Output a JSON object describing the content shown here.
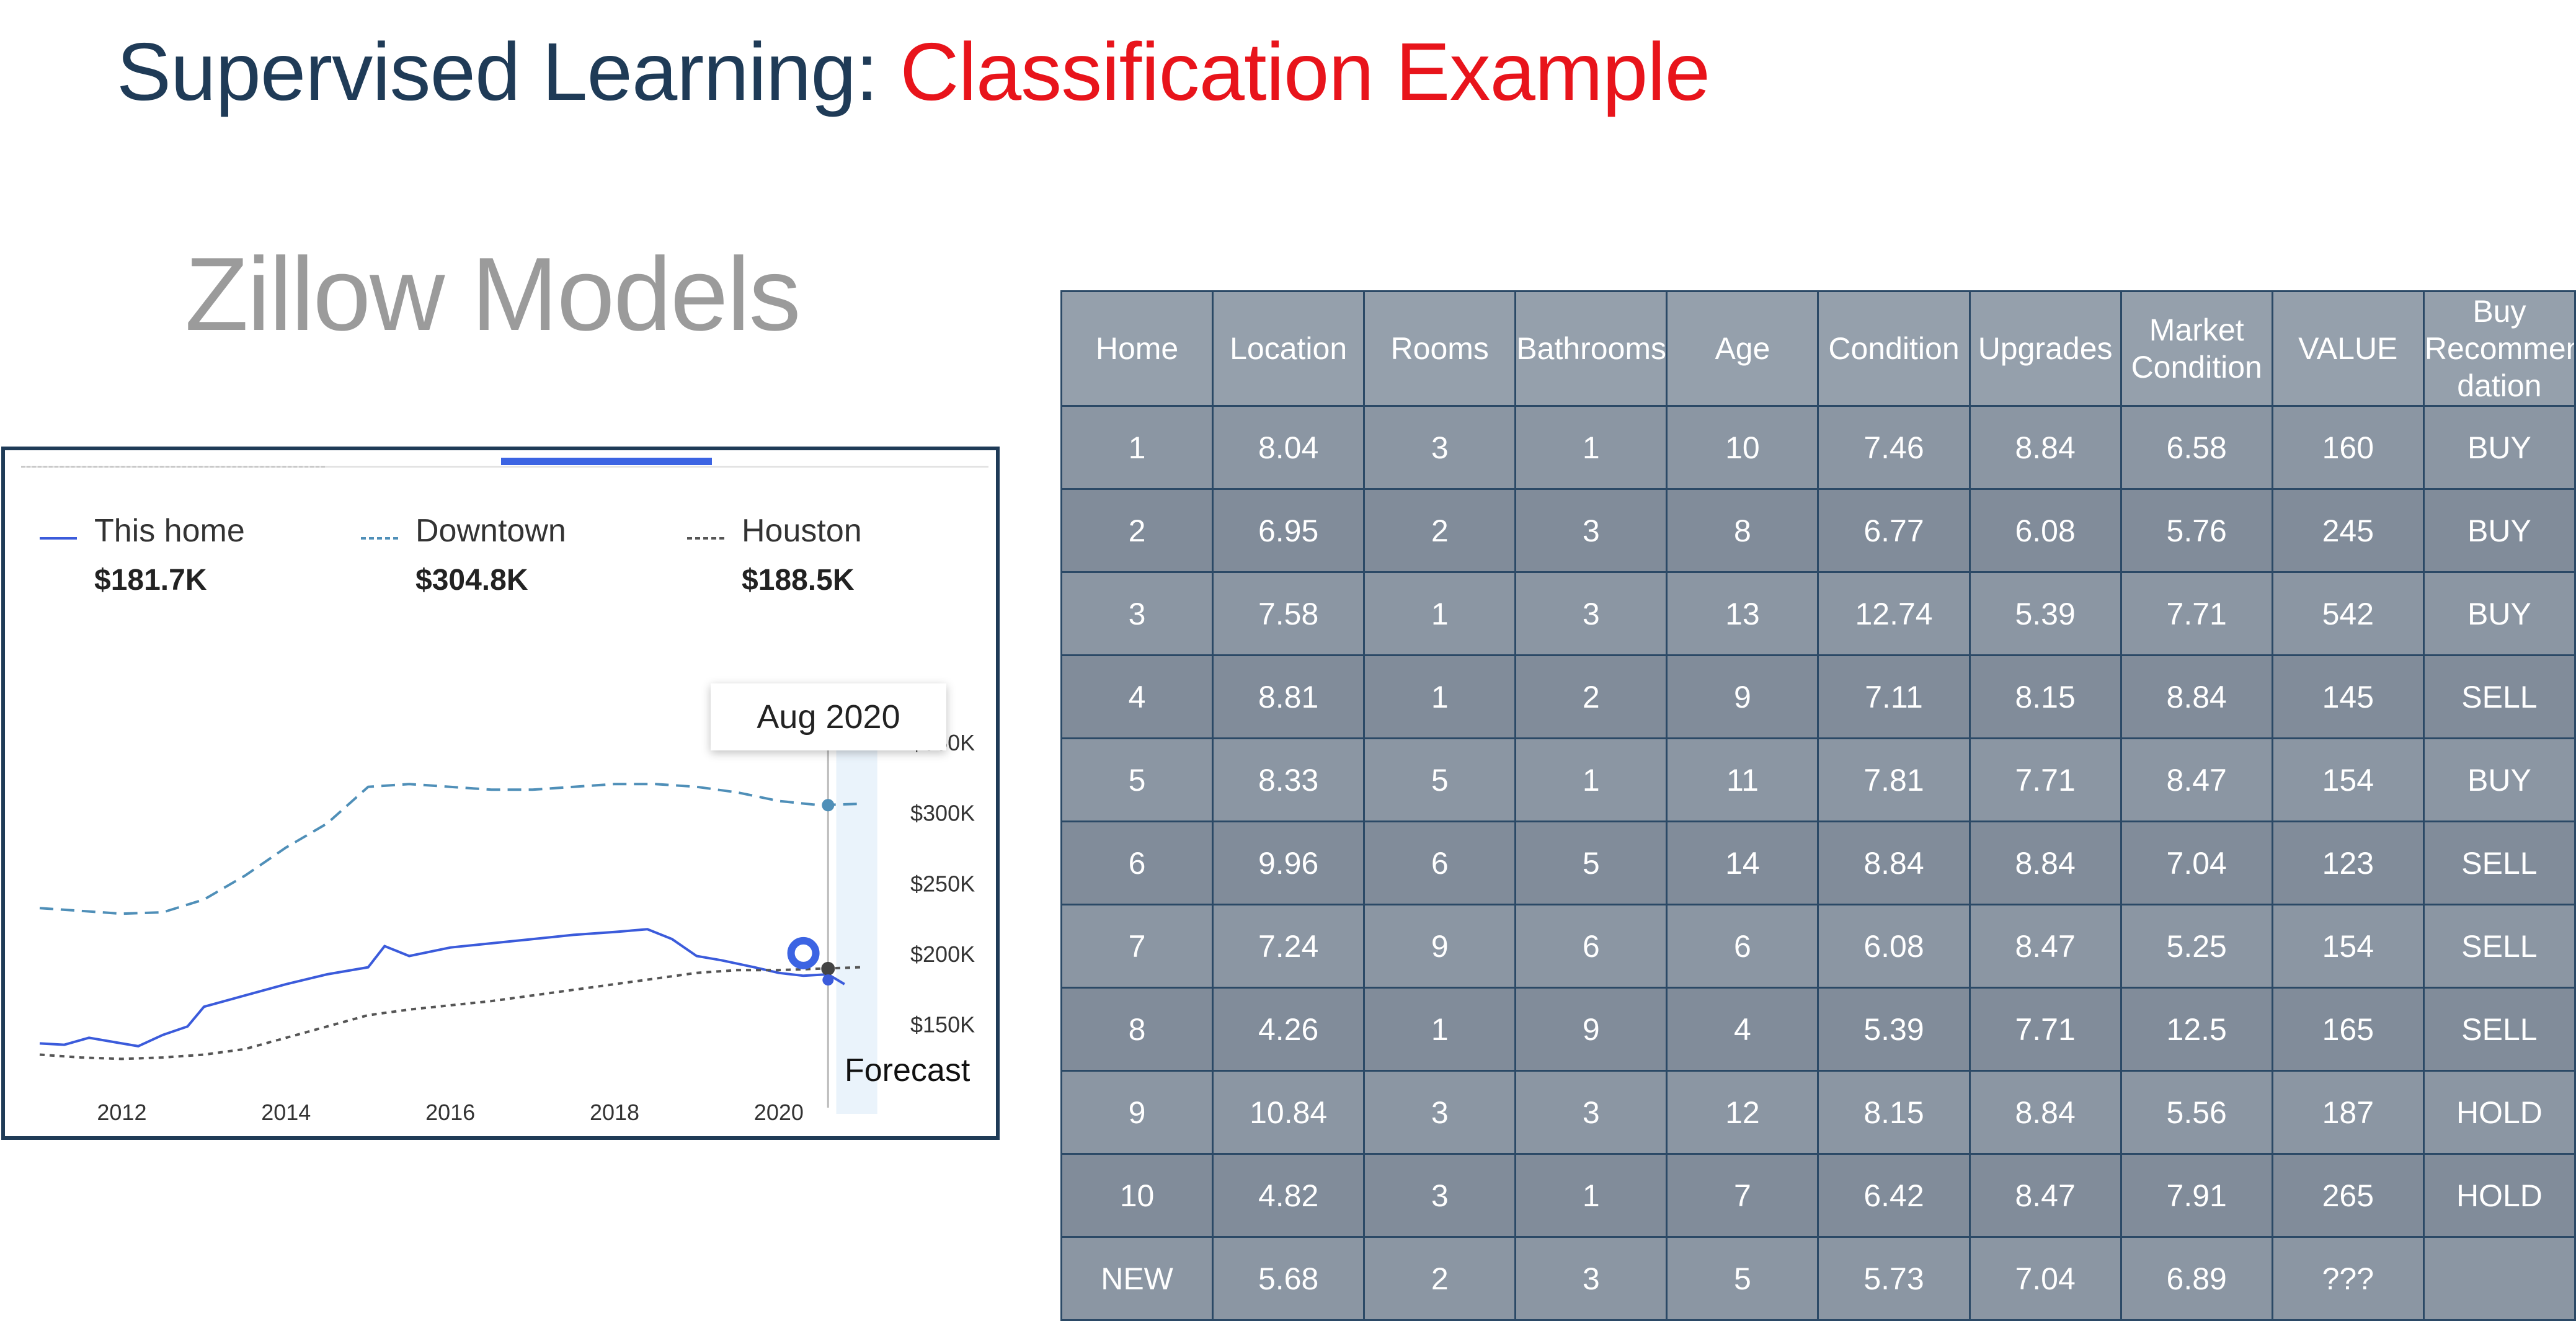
{
  "slide": {
    "title_main": "Supervised Learning: ",
    "title_accent": "Classification Example",
    "subtitle": "Zillow Models",
    "colors": {
      "title": "#1f3b57",
      "accent": "#e8141b",
      "table_cell": "#8b96a3",
      "table_border": "#2b4966"
    }
  },
  "legend": [
    {
      "name": "This home",
      "value": "$181.7K"
    },
    {
      "name": "Downtown",
      "value": "$304.8K"
    },
    {
      "name": "Houston",
      "value": "$188.5K"
    }
  ],
  "tooltip": "Aug 2020",
  "forecast_label": "Forecast",
  "chart_data": {
    "type": "line",
    "x_ticks": [
      "2012",
      "2014",
      "2016",
      "2018",
      "2020"
    ],
    "y_ticks": [
      "$150K",
      "$200K",
      "$250K",
      "$300K",
      "$350K"
    ],
    "ylim": [
      130,
      350
    ],
    "xlim": [
      2011.0,
      2021.3
    ],
    "series": [
      {
        "name": "This home",
        "color": "#3b5bdb",
        "style": "solid",
        "x": [
          2011.0,
          2011.3,
          2011.6,
          2011.9,
          2012.2,
          2012.5,
          2012.8,
          2013.0,
          2013.5,
          2014.0,
          2014.5,
          2015.0,
          2015.2,
          2015.5,
          2016.0,
          2016.5,
          2017.0,
          2017.5,
          2018.0,
          2018.4,
          2018.7,
          2019.0,
          2019.3,
          2019.7,
          2020.0,
          2020.3,
          2020.6,
          2020.8
        ],
        "y": [
          136,
          135,
          140,
          137,
          134,
          142,
          148,
          162,
          170,
          178,
          185,
          190,
          205,
          198,
          204,
          207,
          210,
          213,
          215,
          217,
          210,
          198,
          195,
          190,
          186,
          184,
          185,
          178
        ]
      },
      {
        "name": "Downtown",
        "color": "#4f8fb8",
        "style": "dashed",
        "x": [
          2011.0,
          2011.5,
          2012.0,
          2012.5,
          2013.0,
          2013.5,
          2014.0,
          2014.5,
          2015.0,
          2015.5,
          2016.0,
          2016.5,
          2017.0,
          2017.5,
          2018.0,
          2018.5,
          2019.0,
          2019.5,
          2020.0,
          2020.5,
          2021.0
        ],
        "y": [
          232,
          230,
          228,
          229,
          238,
          255,
          275,
          292,
          318,
          320,
          318,
          316,
          316,
          318,
          320,
          320,
          318,
          314,
          308,
          305,
          306
        ]
      },
      {
        "name": "Houston",
        "color": "#555555",
        "style": "dotted",
        "x": [
          2011.0,
          2011.5,
          2012.0,
          2012.5,
          2013.0,
          2013.5,
          2014.0,
          2014.5,
          2015.0,
          2015.5,
          2016.0,
          2016.5,
          2017.0,
          2017.5,
          2018.0,
          2018.5,
          2019.0,
          2019.5,
          2020.0,
          2020.5,
          2021.0
        ],
        "y": [
          128,
          126,
          125,
          126,
          128,
          132,
          140,
          148,
          156,
          160,
          163,
          166,
          170,
          174,
          178,
          182,
          186,
          188,
          188,
          189,
          190
        ]
      }
    ]
  },
  "table": {
    "headers": [
      "Home",
      "Location",
      "Rooms",
      "Bathrooms",
      "Age",
      "Condition",
      "Upgrades",
      "Market Condition",
      "VALUE",
      "Buy Recommen dation"
    ],
    "rows": [
      [
        "1",
        "8.04",
        "3",
        "1",
        "10",
        "7.46",
        "8.84",
        "6.58",
        "160",
        "BUY"
      ],
      [
        "2",
        "6.95",
        "2",
        "3",
        "8",
        "6.77",
        "6.08",
        "5.76",
        "245",
        "BUY"
      ],
      [
        "3",
        "7.58",
        "1",
        "3",
        "13",
        "12.74",
        "5.39",
        "7.71",
        "542",
        "BUY"
      ],
      [
        "4",
        "8.81",
        "1",
        "2",
        "9",
        "7.11",
        "8.15",
        "8.84",
        "145",
        "SELL"
      ],
      [
        "5",
        "8.33",
        "5",
        "1",
        "11",
        "7.81",
        "7.71",
        "8.47",
        "154",
        "BUY"
      ],
      [
        "6",
        "9.96",
        "6",
        "5",
        "14",
        "8.84",
        "8.84",
        "7.04",
        "123",
        "SELL"
      ],
      [
        "7",
        "7.24",
        "9",
        "6",
        "6",
        "6.08",
        "8.47",
        "5.25",
        "154",
        "SELL"
      ],
      [
        "8",
        "4.26",
        "1",
        "9",
        "4",
        "5.39",
        "7.71",
        "12.5",
        "165",
        "SELL"
      ],
      [
        "9",
        "10.84",
        "3",
        "3",
        "12",
        "8.15",
        "8.84",
        "5.56",
        "187",
        "HOLD"
      ],
      [
        "10",
        "4.82",
        "3",
        "1",
        "7",
        "6.42",
        "8.47",
        "7.91",
        "265",
        "HOLD"
      ],
      [
        "NEW",
        "5.68",
        "2",
        "3",
        "5",
        "5.73",
        "7.04",
        "6.89",
        "???",
        ""
      ]
    ]
  }
}
